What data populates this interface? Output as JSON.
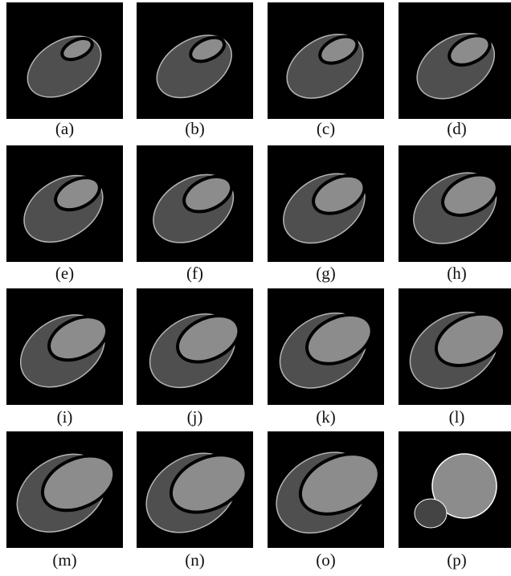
{
  "panels": [
    {
      "label": "(a)"
    },
    {
      "label": "(b)"
    },
    {
      "label": "(c)"
    },
    {
      "label": "(d)"
    },
    {
      "label": "(e)"
    },
    {
      "label": "(f)"
    },
    {
      "label": "(g)"
    },
    {
      "label": "(h)"
    },
    {
      "label": "(i)"
    },
    {
      "label": "(j)"
    },
    {
      "label": "(k)"
    },
    {
      "label": "(l)"
    },
    {
      "label": "(m)"
    },
    {
      "label": "(n)"
    },
    {
      "label": "(o)"
    },
    {
      "label": "(p)"
    }
  ]
}
